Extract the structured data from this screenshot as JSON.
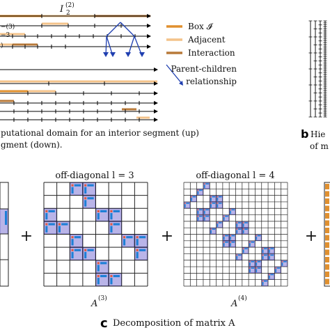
{
  "colors": {
    "box": "#e0902f",
    "adjacent": "#f4c38a",
    "interaction": "#b87a3a",
    "arrow": "#1f3fb0",
    "cell_fill": "#b9b4e8",
    "cell_stroke": "#5b56c4",
    "bar_blue": "#1d7fd6",
    "bar_red": "#e05a45",
    "grid": "#222222"
  },
  "panel_a": {
    "label_top": "I",
    "label_top_sub": "2",
    "label_top_sup": "(2)",
    "label_left_1": "−(3)",
    "label_left_2": "−3",
    "label_left_3": ")",
    "legend_box": "Box 𝓘",
    "legend_adjacent": "Adjacent",
    "legend_interaction": "Interaction",
    "legend_parent_1": "Parent-children",
    "legend_parent_2": "relationship",
    "caption_1": "putational domain for an interior segment (up)",
    "caption_2": "gment (down)."
  },
  "panel_b": {
    "letter": "b",
    "caption_1": "Hie",
    "caption_2": "of m"
  },
  "panel_c": {
    "plus": "+",
    "title_l3": "off-diagonal l = 3",
    "title_l4": "off-diagonal l = 4",
    "matrix_l3": "A",
    "matrix_l3_sup": "(3)",
    "matrix_l4": "A",
    "matrix_l4_sup": "(4)",
    "letter": "c",
    "caption": "Decomposition of matrix A"
  }
}
